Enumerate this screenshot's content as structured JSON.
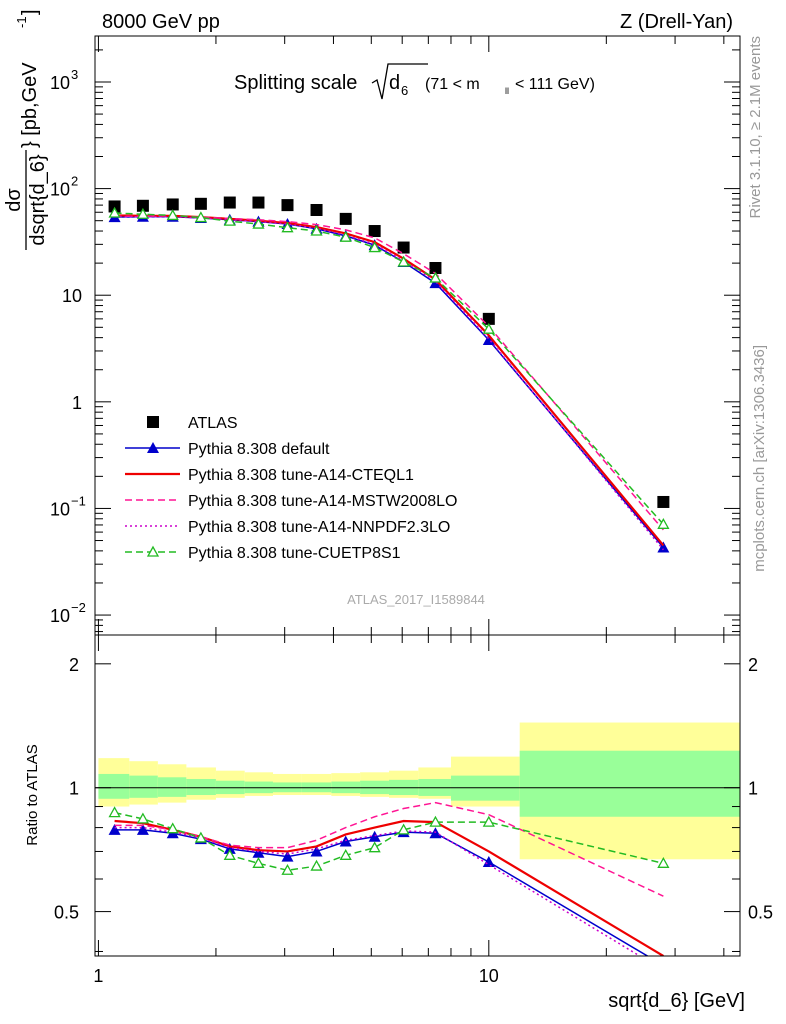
{
  "header": {
    "left": "8000 GeV pp",
    "right": "Z (Drell-Yan)"
  },
  "side": {
    "top": "Rivet 3.1.10, ≥ 2.1M events",
    "bottom": "mcplots.cern.ch [arXiv:1306.3436]"
  },
  "reference": "ATLAS_2017_I1589844",
  "chart_data": [
    {
      "type": "scatter",
      "title": "Splitting scale √d₆ (71 < m_ll < 111 GeV)",
      "title_parts": {
        "main": "Splitting scale",
        "sub": "6",
        "range": "(71 < m",
        "ll": "ll",
        "range_end": "< 111 GeV)"
      },
      "xlabel": "sqrt{d_6} [GeV]",
      "ylabel": "dσ/dsqrt{d_6} [pb,GeV⁻¹]",
      "ylabel_parts": {
        "num": "dσ",
        "den": "dsqrt{d_6}",
        "unit": "} [pb,GeV",
        "exp": "-1",
        "close": "]"
      },
      "x_scale": "log",
      "y_scale": "log",
      "xlim": [
        0.98,
        44
      ],
      "ylim": [
        0.0065,
        2700
      ],
      "x_ticks": [
        {
          "value": 1,
          "label": "1"
        },
        {
          "value": 10,
          "label": "10"
        }
      ],
      "y_ticks": [
        {
          "value": 0.01,
          "label": "10",
          "exp": "−2"
        },
        {
          "value": 0.1,
          "label": "10",
          "exp": "−1"
        },
        {
          "value": 1,
          "label": "1",
          "exp": ""
        },
        {
          "value": 10,
          "label": "10",
          "exp": ""
        },
        {
          "value": 100,
          "label": "10",
          "exp": "2"
        },
        {
          "value": 1000,
          "label": "10",
          "exp": "3"
        }
      ],
      "x": [
        1.1,
        1.3,
        1.55,
        1.83,
        2.17,
        2.57,
        3.05,
        3.62,
        4.3,
        5.1,
        6.05,
        7.3,
        10.0,
        28.0
      ],
      "legend_position": "bottom-left",
      "series": [
        {
          "name": "ATLAS",
          "color": "#000000",
          "style": "marker",
          "marker": "square",
          "values": [
            68,
            69,
            71,
            72,
            74,
            74,
            70,
            63,
            52,
            40,
            28,
            18,
            6,
            0.115
          ]
        },
        {
          "name": "Pythia 8.308 default",
          "color": "#0000cc",
          "style": "solid",
          "marker": "triangle",
          "values": [
            54,
            54.5,
            54.5,
            53,
            51,
            49,
            46.5,
            42,
            36,
            29.5,
            20.5,
            13,
            3.8,
            0.043
          ]
        },
        {
          "name": "Pythia 8.308 tune-A14-CTEQL1",
          "color": "#ee0000",
          "style": "solid",
          "marker": "none",
          "values": [
            56,
            55.5,
            55.5,
            54,
            52,
            50,
            47.5,
            43.5,
            38,
            31.5,
            22,
            14,
            4.2,
            0.045
          ]
        },
        {
          "name": "Pythia 8.308 tune-A14-MSTW2008LO",
          "color": "#ff1493",
          "style": "dashed",
          "marker": "none",
          "values": [
            55,
            55,
            55.5,
            54,
            52.5,
            51,
            49,
            46,
            41,
            34.5,
            24.5,
            16,
            5.1,
            0.063
          ]
        },
        {
          "name": "Pythia 8.308 tune-A14-NNPDF2.3LO",
          "color": "#cc00cc",
          "style": "dotted",
          "marker": "none",
          "values": [
            54.5,
            54.5,
            54.5,
            53,
            51,
            49,
            46.5,
            42.5,
            36.5,
            30,
            21,
            13.5,
            3.9,
            0.041
          ]
        },
        {
          "name": "Pythia 8.308 tune-CUETP8S1",
          "color": "#22bb22",
          "style": "dashed",
          "marker": "open-triangle",
          "values": [
            59,
            57.5,
            56,
            53.5,
            49.5,
            46.5,
            43,
            40,
            35,
            28,
            20.5,
            14.5,
            4.8,
            0.071
          ]
        }
      ]
    },
    {
      "type": "line",
      "ylabel": "Ratio to ATLAS",
      "xlabel": "sqrt{d_6} [GeV]",
      "x_scale": "log",
      "y_scale": "log",
      "xlim": [
        0.98,
        44
      ],
      "ylim": [
        0.39,
        2.35
      ],
      "y_ticks": [
        {
          "value": 0.5,
          "label": "0.5"
        },
        {
          "value": 1,
          "label": "1"
        },
        {
          "value": 2,
          "label": "2"
        }
      ],
      "x": [
        1.1,
        1.3,
        1.55,
        1.83,
        2.17,
        2.57,
        3.05,
        3.62,
        4.3,
        5.1,
        6.05,
        7.3,
        10.0,
        28.0
      ],
      "bands": {
        "bin_edges": [
          1.0,
          1.2,
          1.42,
          1.68,
          2.0,
          2.37,
          2.8,
          3.32,
          3.95,
          4.68,
          5.55,
          6.6,
          8.0,
          12.0,
          44.0
        ],
        "yellow_low": [
          0.9,
          0.91,
          0.92,
          0.935,
          0.945,
          0.955,
          0.96,
          0.96,
          0.955,
          0.95,
          0.945,
          0.94,
          0.9,
          0.67
        ],
        "yellow_high": [
          1.18,
          1.16,
          1.14,
          1.12,
          1.1,
          1.09,
          1.08,
          1.08,
          1.085,
          1.09,
          1.1,
          1.12,
          1.19,
          1.44
        ],
        "green_low": [
          0.94,
          0.945,
          0.95,
          0.96,
          0.965,
          0.97,
          0.975,
          0.975,
          0.97,
          0.965,
          0.96,
          0.955,
          0.93,
          0.85
        ],
        "green_high": [
          1.08,
          1.07,
          1.06,
          1.05,
          1.04,
          1.035,
          1.03,
          1.03,
          1.035,
          1.04,
          1.045,
          1.05,
          1.07,
          1.23
        ]
      },
      "series": [
        {
          "name": "Pythia 8.308 default",
          "color": "#0000cc",
          "style": "solid",
          "marker": "triangle",
          "values": [
            0.79,
            0.79,
            0.775,
            0.75,
            0.71,
            0.695,
            0.68,
            0.7,
            0.74,
            0.76,
            0.78,
            0.775,
            0.66,
            0.37
          ]
        },
        {
          "name": "Pythia 8.308 tune-A14-CTEQL1",
          "color": "#ee0000",
          "style": "solid",
          "marker": "none",
          "values": [
            0.83,
            0.82,
            0.79,
            0.76,
            0.72,
            0.705,
            0.7,
            0.72,
            0.77,
            0.8,
            0.83,
            0.825,
            0.7,
            0.39
          ]
        },
        {
          "name": "Pythia 8.308 tune-A14-MSTW2008LO",
          "color": "#ff1493",
          "style": "dashed",
          "marker": "none",
          "values": [
            0.81,
            0.81,
            0.79,
            0.76,
            0.725,
            0.715,
            0.715,
            0.745,
            0.8,
            0.85,
            0.89,
            0.92,
            0.86,
            0.545
          ]
        },
        {
          "name": "Pythia 8.308 tune-A14-NNPDF2.3LO",
          "color": "#cc00cc",
          "style": "dotted",
          "marker": "none",
          "values": [
            0.8,
            0.8,
            0.78,
            0.755,
            0.715,
            0.7,
            0.69,
            0.71,
            0.745,
            0.765,
            0.785,
            0.78,
            0.65,
            0.36
          ]
        },
        {
          "name": "Pythia 8.308 tune-CUETP8S1",
          "color": "#22bb22",
          "style": "dashed",
          "marker": "open-triangle",
          "values": [
            0.87,
            0.84,
            0.795,
            0.755,
            0.685,
            0.655,
            0.63,
            0.645,
            0.685,
            0.715,
            0.79,
            0.825,
            0.825,
            0.655
          ]
        }
      ]
    }
  ]
}
